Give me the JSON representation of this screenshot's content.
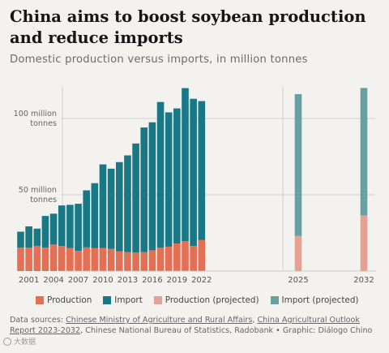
{
  "header": {
    "title": "China aims to boost soybean production and reduce imports",
    "subtitle": "Domestic production versus imports, in million tonnes"
  },
  "colors": {
    "production": "#e36f55",
    "import": "#197886",
    "production_projected": "#e7a192",
    "import_projected": "#679fa3",
    "background": "#f3f2ee",
    "grid": "#c9c9c9"
  },
  "legend": {
    "production": "Production",
    "import": "Import",
    "production_projected": "Production (projected)",
    "import_projected": "Import (projected)"
  },
  "footer": {
    "prefix": "Data sources: ",
    "source1": "Chinese Ministry of Agriculture and Rural Affairs",
    "sep1": ", ",
    "source2": "China Agricultural Outlook Report 2023-2032",
    "rest": ", Chinese National Bureau of Statistics, Radobank • Graphic: Diálogo Chino"
  },
  "watermark": {
    "text": "大数据"
  },
  "chart_data": {
    "type": "bar",
    "stacked": true,
    "title": "China aims to boost soybean production and reduce imports",
    "subtitle": "Domestic production versus imports, in million tonnes",
    "y_tick_labels": [
      {
        "value": 100,
        "line1": "100 million",
        "line2": "tonnes"
      },
      {
        "value": 50,
        "line1": "50 million",
        "line2": "tonnes"
      }
    ],
    "ylim": [
      0,
      120
    ],
    "x_tick_labels": [
      "2001",
      "2004",
      "2007",
      "2010",
      "2013",
      "2016",
      "2019",
      "2022",
      "2025",
      "2032"
    ],
    "historical": {
      "years": [
        2000,
        2001,
        2002,
        2003,
        2004,
        2005,
        2006,
        2007,
        2008,
        2009,
        2010,
        2011,
        2012,
        2013,
        2014,
        2015,
        2016,
        2017,
        2018,
        2019,
        2020,
        2021,
        2022
      ],
      "series": [
        {
          "name": "Production",
          "values": [
            15.4,
            15.4,
            16.5,
            15.4,
            17.4,
            16.4,
            15.1,
            13.3,
            15.5,
            15.0,
            15.1,
            14.5,
            13.0,
            12.4,
            12.2,
            12.4,
            13.6,
            15.3,
            16.0,
            18.1,
            19.6,
            16.4,
            20.3
          ]
        },
        {
          "name": "Import",
          "values": [
            10.4,
            13.9,
            11.3,
            20.7,
            20.2,
            26.6,
            28.3,
            30.8,
            37.4,
            42.6,
            54.8,
            52.6,
            58.4,
            63.4,
            71.4,
            81.7,
            83.9,
            95.5,
            88.0,
            88.5,
            100.3,
            96.5,
            91.1
          ]
        }
      ]
    },
    "projected": {
      "years": [
        2025,
        2032
      ],
      "series": [
        {
          "name": "Production (projected)",
          "values": [
            23.0,
            36.5
          ]
        },
        {
          "name": "Import (projected)",
          "values": [
            93.0,
            83.5
          ]
        }
      ]
    },
    "grid": true,
    "legend_position": "bottom"
  }
}
